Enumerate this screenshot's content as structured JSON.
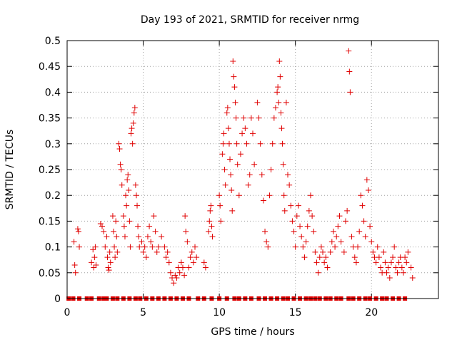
{
  "chart_data": {
    "type": "scatter",
    "title": "Day 193 of 2021, SRMTID for receiver nrmg",
    "xlabel": "GPS time / hours",
    "ylabel": "SRMTID / TECUs",
    "xlim": [
      0,
      24.4
    ],
    "ylim": [
      0,
      0.5
    ],
    "x_ticks": [
      0,
      5,
      10,
      15,
      20
    ],
    "x_tick_labels": [
      "0",
      "5",
      "10",
      "15",
      "20"
    ],
    "y_ticks": [
      0,
      0.05,
      0.1,
      0.15,
      0.2,
      0.25,
      0.3,
      0.35,
      0.4,
      0.45,
      0.5
    ],
    "y_tick_labels": [
      "0",
      "0.05",
      "0.1",
      "0.15",
      "0.2",
      "0.25",
      "0.3",
      "0.35",
      "0.4",
      "0.45",
      "0.5"
    ],
    "grid": true,
    "marker_color": "#e00000",
    "series": [
      {
        "name": "SRMTID",
        "marker": "plus",
        "points": [
          [
            0.45,
            0.11
          ],
          [
            0.5,
            0.065
          ],
          [
            0.55,
            0.05
          ],
          [
            0.7,
            0.135
          ],
          [
            0.75,
            0.13
          ],
          [
            0.8,
            0.1
          ],
          [
            1.6,
            0.07
          ],
          [
            1.7,
            0.095
          ],
          [
            1.75,
            0.06
          ],
          [
            1.8,
            0.08
          ],
          [
            1.85,
            0.1
          ],
          [
            1.9,
            0.065
          ],
          [
            2.2,
            0.145
          ],
          [
            2.3,
            0.14
          ],
          [
            2.4,
            0.13
          ],
          [
            2.5,
            0.1
          ],
          [
            2.6,
            0.12
          ],
          [
            2.65,
            0.08
          ],
          [
            2.7,
            0.06
          ],
          [
            2.75,
            0.055
          ],
          [
            2.8,
            0.09
          ],
          [
            2.85,
            0.07
          ],
          [
            3.0,
            0.16
          ],
          [
            3.05,
            0.13
          ],
          [
            3.1,
            0.1
          ],
          [
            3.15,
            0.08
          ],
          [
            3.2,
            0.15
          ],
          [
            3.25,
            0.12
          ],
          [
            3.3,
            0.09
          ],
          [
            3.4,
            0.3
          ],
          [
            3.45,
            0.29
          ],
          [
            3.5,
            0.26
          ],
          [
            3.55,
            0.25
          ],
          [
            3.6,
            0.22
          ],
          [
            3.7,
            0.16
          ],
          [
            3.75,
            0.14
          ],
          [
            3.8,
            0.12
          ],
          [
            3.85,
            0.2
          ],
          [
            3.9,
            0.18
          ],
          [
            3.95,
            0.23
          ],
          [
            4.0,
            0.24
          ],
          [
            4.05,
            0.21
          ],
          [
            4.1,
            0.15
          ],
          [
            4.15,
            0.1
          ],
          [
            4.2,
            0.32
          ],
          [
            4.25,
            0.33
          ],
          [
            4.3,
            0.3
          ],
          [
            4.35,
            0.34
          ],
          [
            4.4,
            0.36
          ],
          [
            4.45,
            0.37
          ],
          [
            4.5,
            0.22
          ],
          [
            4.55,
            0.2
          ],
          [
            4.6,
            0.18
          ],
          [
            4.65,
            0.14
          ],
          [
            4.7,
            0.12
          ],
          [
            4.75,
            0.1
          ],
          [
            4.9,
            0.11
          ],
          [
            5.0,
            0.09
          ],
          [
            5.1,
            0.1
          ],
          [
            5.2,
            0.08
          ],
          [
            5.3,
            0.12
          ],
          [
            5.4,
            0.14
          ],
          [
            5.5,
            0.11
          ],
          [
            5.6,
            0.1
          ],
          [
            5.7,
            0.16
          ],
          [
            5.8,
            0.13
          ],
          [
            5.9,
            0.09
          ],
          [
            6.0,
            0.1
          ],
          [
            6.2,
            0.12
          ],
          [
            6.4,
            0.1
          ],
          [
            6.5,
            0.08
          ],
          [
            6.6,
            0.09
          ],
          [
            6.7,
            0.07
          ],
          [
            6.8,
            0.05
          ],
          [
            6.9,
            0.04
          ],
          [
            7.0,
            0.03
          ],
          [
            7.1,
            0.045
          ],
          [
            7.2,
            0.04
          ],
          [
            7.3,
            0.06
          ],
          [
            7.4,
            0.05
          ],
          [
            7.5,
            0.07
          ],
          [
            7.6,
            0.06
          ],
          [
            7.7,
            0.045
          ],
          [
            7.75,
            0.16
          ],
          [
            7.8,
            0.13
          ],
          [
            7.9,
            0.11
          ],
          [
            8.0,
            0.06
          ],
          [
            8.1,
            0.08
          ],
          [
            8.2,
            0.09
          ],
          [
            8.3,
            0.07
          ],
          [
            8.4,
            0.1
          ],
          [
            8.5,
            0.08
          ],
          [
            9.0,
            0.07
          ],
          [
            9.1,
            0.06
          ],
          [
            9.3,
            0.13
          ],
          [
            9.35,
            0.15
          ],
          [
            9.4,
            0.17
          ],
          [
            9.45,
            0.18
          ],
          [
            9.5,
            0.14
          ],
          [
            9.55,
            0.12
          ],
          [
            10.0,
            0.2
          ],
          [
            10.05,
            0.18
          ],
          [
            10.1,
            0.15
          ],
          [
            10.2,
            0.28
          ],
          [
            10.25,
            0.3
          ],
          [
            10.3,
            0.32
          ],
          [
            10.35,
            0.25
          ],
          [
            10.4,
            0.22
          ],
          [
            10.5,
            0.36
          ],
          [
            10.55,
            0.37
          ],
          [
            10.6,
            0.33
          ],
          [
            10.65,
            0.3
          ],
          [
            10.7,
            0.27
          ],
          [
            10.75,
            0.24
          ],
          [
            10.8,
            0.21
          ],
          [
            10.85,
            0.17
          ],
          [
            10.9,
            0.46
          ],
          [
            10.95,
            0.43
          ],
          [
            11.0,
            0.41
          ],
          [
            11.05,
            0.38
          ],
          [
            11.1,
            0.35
          ],
          [
            11.15,
            0.3
          ],
          [
            11.2,
            0.26
          ],
          [
            11.3,
            0.2
          ],
          [
            11.4,
            0.28
          ],
          [
            11.5,
            0.32
          ],
          [
            11.6,
            0.35
          ],
          [
            11.7,
            0.33
          ],
          [
            11.8,
            0.3
          ],
          [
            11.9,
            0.22
          ],
          [
            12.0,
            0.24
          ],
          [
            12.1,
            0.35
          ],
          [
            12.2,
            0.32
          ],
          [
            12.3,
            0.26
          ],
          [
            12.5,
            0.38
          ],
          [
            12.6,
            0.35
          ],
          [
            12.7,
            0.3
          ],
          [
            12.8,
            0.24
          ],
          [
            12.9,
            0.19
          ],
          [
            13.0,
            0.13
          ],
          [
            13.1,
            0.11
          ],
          [
            13.2,
            0.1
          ],
          [
            13.3,
            0.2
          ],
          [
            13.4,
            0.25
          ],
          [
            13.5,
            0.3
          ],
          [
            13.6,
            0.35
          ],
          [
            13.7,
            0.37
          ],
          [
            13.8,
            0.4
          ],
          [
            13.85,
            0.41
          ],
          [
            13.9,
            0.38
          ],
          [
            13.95,
            0.46
          ],
          [
            14.0,
            0.43
          ],
          [
            14.05,
            0.36
          ],
          [
            14.1,
            0.33
          ],
          [
            14.15,
            0.3
          ],
          [
            14.2,
            0.26
          ],
          [
            14.25,
            0.2
          ],
          [
            14.3,
            0.17
          ],
          [
            14.4,
            0.38
          ],
          [
            14.5,
            0.24
          ],
          [
            14.6,
            0.22
          ],
          [
            14.7,
            0.18
          ],
          [
            14.8,
            0.15
          ],
          [
            14.9,
            0.13
          ],
          [
            15.0,
            0.1
          ],
          [
            15.1,
            0.16
          ],
          [
            15.2,
            0.18
          ],
          [
            15.3,
            0.14
          ],
          [
            15.4,
            0.12
          ],
          [
            15.5,
            0.1
          ],
          [
            15.6,
            0.08
          ],
          [
            15.7,
            0.11
          ],
          [
            15.8,
            0.14
          ],
          [
            15.9,
            0.17
          ],
          [
            16.0,
            0.2
          ],
          [
            16.1,
            0.16
          ],
          [
            16.2,
            0.13
          ],
          [
            16.3,
            0.09
          ],
          [
            16.4,
            0.07
          ],
          [
            16.5,
            0.05
          ],
          [
            16.6,
            0.08
          ],
          [
            16.7,
            0.1
          ],
          [
            16.8,
            0.09
          ],
          [
            16.9,
            0.07
          ],
          [
            17.0,
            0.08
          ],
          [
            17.1,
            0.06
          ],
          [
            17.3,
            0.09
          ],
          [
            17.4,
            0.11
          ],
          [
            17.5,
            0.13
          ],
          [
            17.6,
            0.1
          ],
          [
            17.7,
            0.12
          ],
          [
            17.8,
            0.14
          ],
          [
            17.9,
            0.16
          ],
          [
            18.0,
            0.11
          ],
          [
            18.2,
            0.09
          ],
          [
            18.3,
            0.15
          ],
          [
            18.4,
            0.17
          ],
          [
            18.5,
            0.48
          ],
          [
            18.55,
            0.44
          ],
          [
            18.6,
            0.4
          ],
          [
            18.7,
            0.12
          ],
          [
            18.8,
            0.1
          ],
          [
            18.9,
            0.08
          ],
          [
            19.0,
            0.07
          ],
          [
            19.1,
            0.1
          ],
          [
            19.2,
            0.13
          ],
          [
            19.3,
            0.2
          ],
          [
            19.4,
            0.18
          ],
          [
            19.5,
            0.15
          ],
          [
            19.6,
            0.12
          ],
          [
            19.7,
            0.23
          ],
          [
            19.8,
            0.21
          ],
          [
            19.9,
            0.14
          ],
          [
            20.0,
            0.11
          ],
          [
            20.1,
            0.09
          ],
          [
            20.2,
            0.08
          ],
          [
            20.3,
            0.07
          ],
          [
            20.4,
            0.1
          ],
          [
            20.5,
            0.08
          ],
          [
            20.6,
            0.06
          ],
          [
            20.7,
            0.05
          ],
          [
            20.8,
            0.09
          ],
          [
            20.9,
            0.07
          ],
          [
            21.0,
            0.05
          ],
          [
            21.1,
            0.06
          ],
          [
            21.2,
            0.04
          ],
          [
            21.3,
            0.07
          ],
          [
            21.4,
            0.08
          ],
          [
            21.5,
            0.1
          ],
          [
            21.6,
            0.06
          ],
          [
            21.7,
            0.05
          ],
          [
            21.8,
            0.07
          ],
          [
            21.9,
            0.08
          ],
          [
            22.0,
            0.06
          ],
          [
            22.1,
            0.05
          ],
          [
            22.2,
            0.08
          ],
          [
            22.3,
            0.07
          ],
          [
            22.4,
            0.09
          ],
          [
            22.6,
            0.06
          ],
          [
            22.7,
            0.04
          ]
        ]
      }
    ],
    "baseline_markers": {
      "name": "zero-values",
      "marker": "square",
      "y": 0,
      "x": [
        0.1,
        0.4,
        0.8,
        1.3,
        1.6,
        2.1,
        2.4,
        2.6,
        3.0,
        3.3,
        3.7,
        4.1,
        4.5,
        4.8,
        5.2,
        5.6,
        6.0,
        6.4,
        6.8,
        7.2,
        7.6,
        8.0,
        8.6,
        9.0,
        9.5,
        10.0,
        10.5,
        11.0,
        11.3,
        11.7,
        12.1,
        12.6,
        13.0,
        13.4,
        13.8,
        14.2,
        14.5,
        14.9,
        15.3,
        15.7,
        16.0,
        16.3,
        16.6,
        17.0,
        17.3,
        17.7,
        18.0,
        18.5,
        18.8,
        19.2,
        19.6,
        19.9,
        20.3,
        20.7,
        21.0,
        21.4,
        21.8,
        22.2
      ]
    }
  }
}
